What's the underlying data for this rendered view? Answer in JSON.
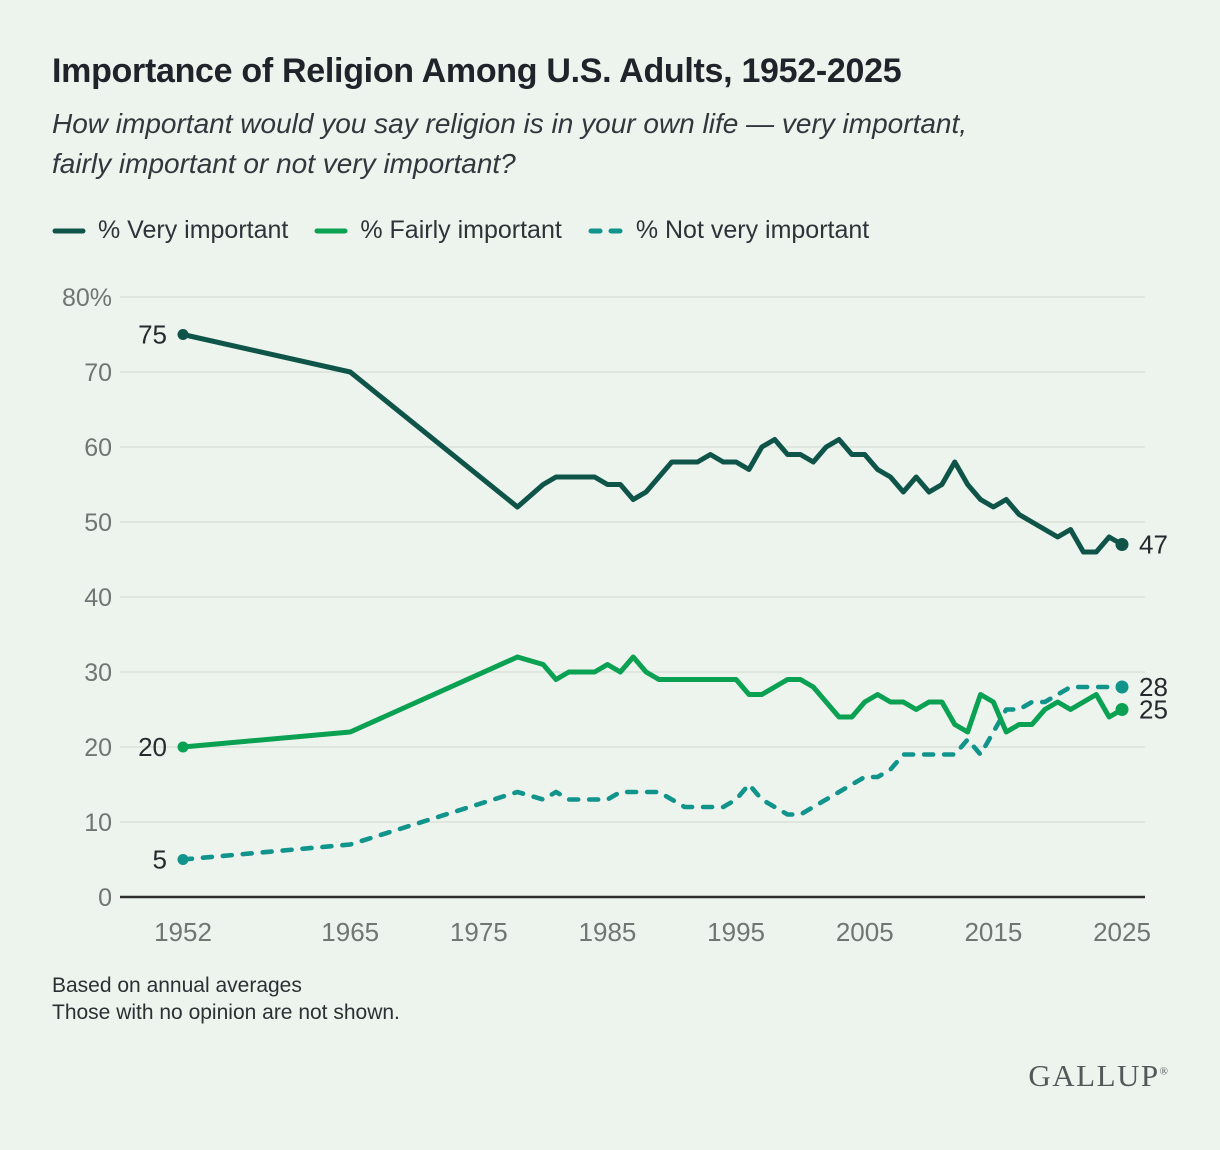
{
  "header": {
    "title": "Importance of Religion Among U.S. Adults, 1952-2025",
    "subtitle_lines": [
      "How important would you say religion is in your own life — very important,",
      "fairly important or not very important?"
    ]
  },
  "footnotes": {
    "line1": "Based on annual averages",
    "line2": "Those with no opinion are not shown."
  },
  "logo": {
    "text": "GALLUP",
    "mark": "®"
  },
  "colors": {
    "background": "#edf4ed",
    "grid": "#d9e2d8",
    "axis": "#2e2e2e",
    "tick_text": "#6f7674",
    "annotation_text": "#26292e",
    "very_important": "#0e5449",
    "fairly_important": "#0aa153",
    "not_very_important": "#10948b"
  },
  "chart_data": {
    "type": "line",
    "title": "Importance of Religion Among U.S. Adults, 1952-2025",
    "xlabel": "",
    "ylabel": "",
    "ylim": [
      0,
      80
    ],
    "xlim": [
      1952,
      2025
    ],
    "grid": true,
    "legend_position": "top",
    "point_labels": "first and last point of each series are labeled with their value",
    "x": [
      1952,
      1965,
      1978,
      1980,
      1981,
      1982,
      1983,
      1984,
      1985,
      1986,
      1987,
      1988,
      1989,
      1990,
      1991,
      1992,
      1993,
      1994,
      1995,
      1996,
      1997,
      1998,
      1999,
      2000,
      2001,
      2002,
      2003,
      2004,
      2005,
      2006,
      2007,
      2008,
      2009,
      2010,
      2011,
      2012,
      2013,
      2014,
      2015,
      2016,
      2017,
      2018,
      2019,
      2020,
      2021,
      2022,
      2023,
      2024,
      2025
    ],
    "series": [
      {
        "name": "% Very important",
        "color": "#0e5449",
        "dashed": false,
        "values": [
          75,
          70,
          52,
          55,
          56,
          56,
          56,
          56,
          55,
          55,
          53,
          54,
          56,
          58,
          58,
          58,
          59,
          58,
          58,
          57,
          60,
          61,
          59,
          59,
          58,
          60,
          61,
          59,
          59,
          57,
          56,
          54,
          56,
          54,
          55,
          58,
          55,
          53,
          52,
          53,
          51,
          50,
          49,
          48,
          49,
          46,
          46,
          48,
          47
        ]
      },
      {
        "name": "% Fairly important",
        "color": "#0aa153",
        "dashed": false,
        "values": [
          20,
          22,
          32,
          31,
          29,
          30,
          30,
          30,
          31,
          30,
          32,
          30,
          29,
          29,
          29,
          29,
          29,
          29,
          29,
          27,
          27,
          28,
          29,
          29,
          28,
          26,
          24,
          24,
          26,
          27,
          26,
          26,
          25,
          26,
          26,
          23,
          22,
          27,
          26,
          22,
          23,
          23,
          25,
          26,
          25,
          26,
          27,
          24,
          25
        ]
      },
      {
        "name": "% Not very important",
        "color": "#10948b",
        "dashed": true,
        "values": [
          5,
          7,
          14,
          13,
          14,
          13,
          13,
          13,
          13,
          14,
          14,
          14,
          14,
          13,
          12,
          12,
          12,
          12,
          13,
          15,
          13,
          12,
          11,
          11,
          12,
          13,
          14,
          15,
          16,
          16,
          17,
          19,
          19,
          19,
          19,
          19,
          21,
          19,
          22,
          25,
          25,
          26,
          26,
          27,
          28,
          28,
          28,
          28,
          28
        ]
      }
    ],
    "y_ticks": {
      "values": [
        80,
        70,
        60,
        50,
        40,
        30,
        20,
        10,
        0
      ],
      "labels": [
        "80%",
        "70",
        "60",
        "50",
        "40",
        "30",
        "20",
        "10",
        "0"
      ]
    },
    "x_ticks": {
      "values": [
        1952,
        1965,
        1975,
        1985,
        1995,
        2005,
        2015,
        2025
      ],
      "labels": [
        "1952",
        "1965",
        "1975",
        "1985",
        "1995",
        "2005",
        "2015",
        "2025"
      ]
    }
  }
}
